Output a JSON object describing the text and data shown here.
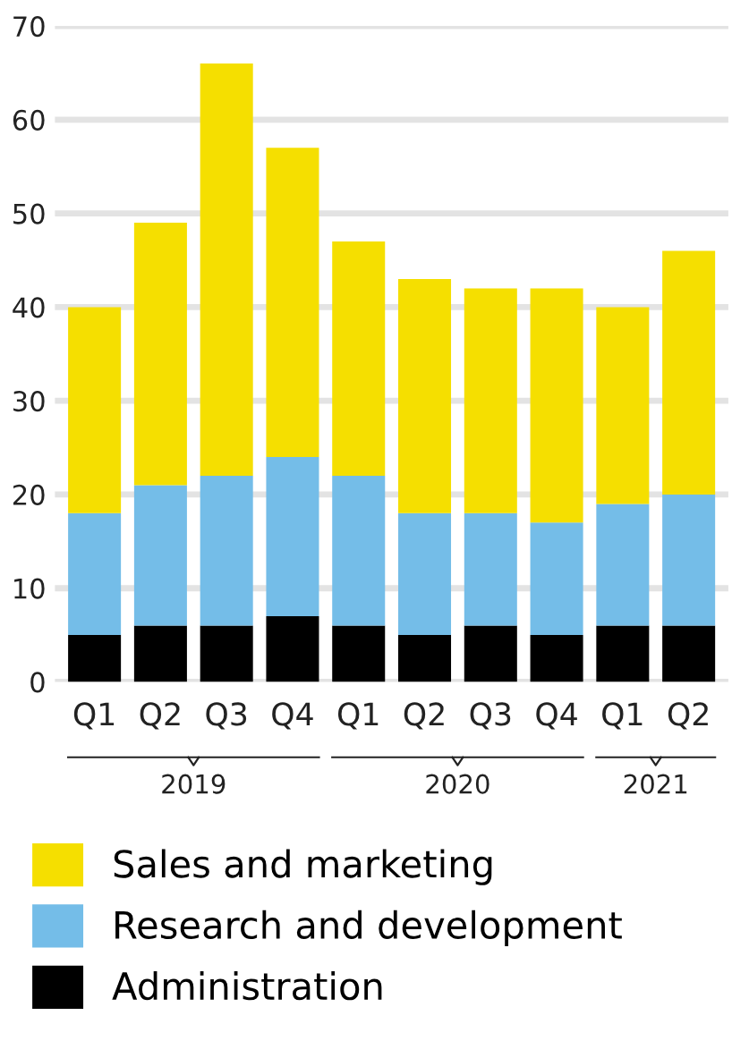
{
  "chart_data": {
    "type": "bar",
    "stacked": true,
    "categories": [
      "Q1",
      "Q2",
      "Q3",
      "Q4",
      "Q1",
      "Q2",
      "Q3",
      "Q4",
      "Q1",
      "Q2"
    ],
    "series": [
      {
        "name": "Administration",
        "color": "#000000",
        "values": [
          5,
          6,
          6,
          7,
          6,
          5,
          6,
          5,
          6,
          6
        ]
      },
      {
        "name": "Research and development",
        "color": "#74bde8",
        "values": [
          13,
          15,
          16,
          17,
          16,
          13,
          12,
          12,
          13,
          14
        ]
      },
      {
        "name": "Sales and marketing",
        "color": "#f5df00",
        "values": [
          22,
          28,
          44,
          33,
          25,
          25,
          24,
          25,
          21,
          26
        ]
      }
    ],
    "annotations": [
      "2019",
      "2020",
      "2021"
    ],
    "ylim": [
      0,
      70
    ],
    "yticks": [
      0,
      10,
      20,
      30,
      40,
      50,
      60,
      70
    ],
    "grid": "y",
    "legend": "bottom"
  }
}
